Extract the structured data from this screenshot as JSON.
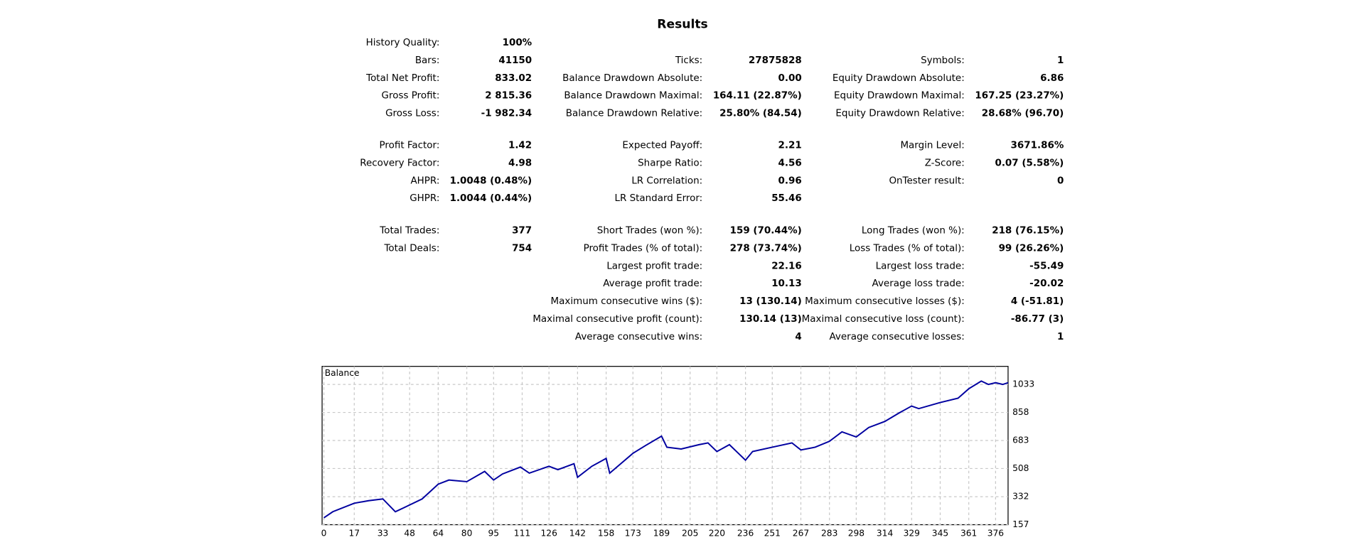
{
  "title": "Results",
  "stats": [
    [
      [
        [
          "History Quality:",
          "100%"
        ],
        null,
        null
      ],
      [
        [
          "Bars:",
          "41150"
        ],
        [
          "Ticks:",
          "27875828"
        ],
        [
          "Symbols:",
          "1"
        ]
      ],
      [
        [
          "Total Net Profit:",
          "833.02"
        ],
        [
          "Balance Drawdown Absolute:",
          "0.00"
        ],
        [
          "Equity Drawdown Absolute:",
          "6.86"
        ]
      ],
      [
        [
          "Gross Profit:",
          "2 815.36"
        ],
        [
          "Balance Drawdown Maximal:",
          "164.11 (22.87%)"
        ],
        [
          "Equity Drawdown Maximal:",
          "167.25 (23.27%)"
        ]
      ],
      [
        [
          "Gross Loss:",
          "-1 982.34"
        ],
        [
          "Balance Drawdown Relative:",
          "25.80% (84.54)"
        ],
        [
          "Equity Drawdown Relative:",
          "28.68% (96.70)"
        ]
      ]
    ],
    [
      [
        [
          "Profit Factor:",
          "1.42"
        ],
        [
          "Expected Payoff:",
          "2.21"
        ],
        [
          "Margin Level:",
          "3671.86%"
        ]
      ],
      [
        [
          "Recovery Factor:",
          "4.98"
        ],
        [
          "Sharpe Ratio:",
          "4.56"
        ],
        [
          "Z-Score:",
          "0.07 (5.58%)"
        ]
      ],
      [
        [
          "AHPR:",
          "1.0048 (0.48%)"
        ],
        [
          "LR Correlation:",
          "0.96"
        ],
        [
          "OnTester result:",
          "0"
        ]
      ],
      [
        [
          "GHPR:",
          "1.0044 (0.44%)"
        ],
        [
          "LR Standard Error:",
          "55.46"
        ],
        null
      ]
    ],
    [
      [
        [
          "Total Trades:",
          "377"
        ],
        [
          "Short Trades (won %):",
          "159 (70.44%)"
        ],
        [
          "Long Trades (won %):",
          "218 (76.15%)"
        ]
      ],
      [
        [
          "Total Deals:",
          "754"
        ],
        [
          "Profit Trades (% of total):",
          "278 (73.74%)"
        ],
        [
          "Loss Trades (% of total):",
          "99 (26.26%)"
        ]
      ],
      [
        null,
        [
          "Largest profit trade:",
          "22.16"
        ],
        [
          "Largest loss trade:",
          "-55.49"
        ]
      ],
      [
        null,
        [
          "Average profit trade:",
          "10.13"
        ],
        [
          "Average loss trade:",
          "-20.02"
        ]
      ],
      [
        null,
        [
          "Maximum consecutive wins ($):",
          "13 (130.14)"
        ],
        [
          "Maximum consecutive losses ($):",
          "4 (-51.81)"
        ]
      ],
      [
        null,
        [
          "Maximal consecutive profit (count):",
          "130.14 (13)"
        ],
        [
          "Maximal consecutive loss (count):",
          "-86.77 (3)"
        ]
      ],
      [
        null,
        [
          "Average consecutive wins:",
          "4"
        ],
        [
          "Average consecutive losses:",
          "1"
        ]
      ]
    ]
  ],
  "chart_data": {
    "type": "line",
    "x": [
      0,
      5,
      17,
      25,
      33,
      40,
      45,
      55,
      64,
      70,
      80,
      90,
      95,
      100,
      110,
      115,
      126,
      131,
      140,
      142,
      150,
      158,
      160,
      173,
      180,
      189,
      192,
      200,
      210,
      215,
      220,
      227,
      236,
      240,
      251,
      262,
      267,
      275,
      283,
      290,
      298,
      305,
      314,
      322,
      329,
      333,
      345,
      355,
      361,
      368,
      372,
      376,
      380,
      383
    ],
    "series": [
      {
        "name": "Balance",
        "color": "#0000a0",
        "values": [
          200,
          238,
          291,
          307,
          318,
          238,
          264,
          318,
          410,
          436,
          426,
          490,
          436,
          474,
          517,
          479,
          522,
          501,
          538,
          453,
          522,
          571,
          479,
          603,
          651,
          710,
          641,
          630,
          657,
          668,
          614,
          657,
          560,
          614,
          641,
          668,
          624,
          641,
          678,
          737,
          705,
          764,
          802,
          855,
          898,
          882,
          920,
          947,
          1006,
          1054,
          1033,
          1044,
          1033,
          1044
        ]
      }
    ],
    "xlim": [
      -1,
      383
    ],
    "ylim": [
      157,
      1146
    ],
    "xticks": [
      0,
      17,
      33,
      48,
      64,
      80,
      95,
      111,
      126,
      142,
      158,
      173,
      189,
      205,
      220,
      236,
      251,
      267,
      283,
      298,
      314,
      329,
      345,
      361,
      376
    ],
    "yticks": [
      157,
      332,
      508,
      683,
      858,
      1033
    ],
    "grid": true
  }
}
